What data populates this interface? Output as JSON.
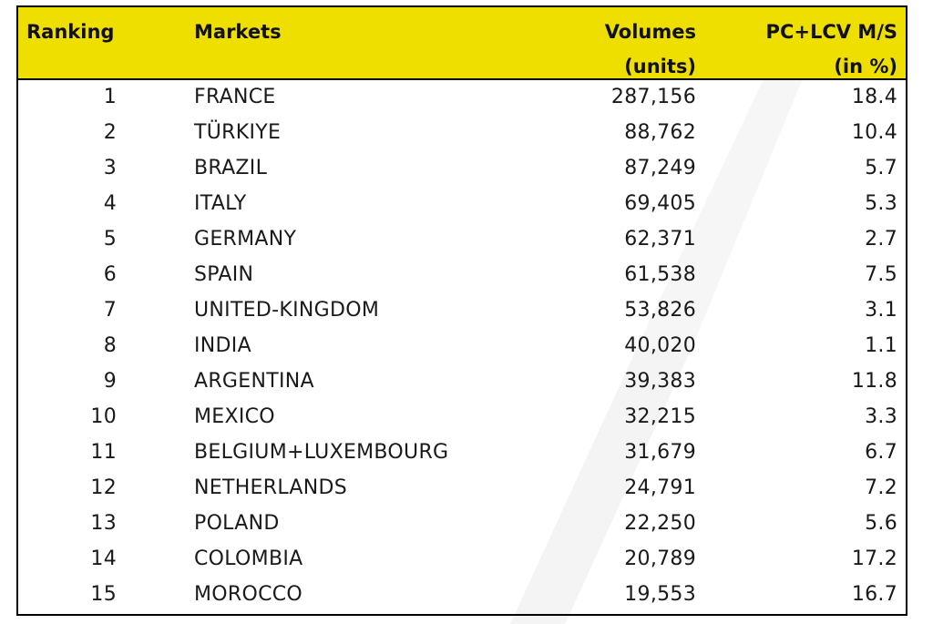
{
  "header": {
    "ranking": "Ranking",
    "markets": "Markets",
    "volumes_line1": "Volumes",
    "volumes_line2": "(units)",
    "share_line1": "PC+LCV M/S",
    "share_line2": "(in %)"
  },
  "colors": {
    "header_bg": "#efdf00",
    "border": "#000000"
  },
  "rows": [
    {
      "rank": "1",
      "market": "FRANCE",
      "volume": "287,156",
      "share": "18.4"
    },
    {
      "rank": "2",
      "market": "TÜRKIYE",
      "volume": "88,762",
      "share": "10.4"
    },
    {
      "rank": "3",
      "market": "BRAZIL",
      "volume": "87,249",
      "share": "5.7"
    },
    {
      "rank": "4",
      "market": "ITALY",
      "volume": "69,405",
      "share": "5.3"
    },
    {
      "rank": "5",
      "market": "GERMANY",
      "volume": "62,371",
      "share": "2.7"
    },
    {
      "rank": "6",
      "market": "SPAIN",
      "volume": "61,538",
      "share": "7.5"
    },
    {
      "rank": "7",
      "market": "UNITED-KINGDOM",
      "volume": "53,826",
      "share": "3.1"
    },
    {
      "rank": "8",
      "market": "INDIA",
      "volume": "40,020",
      "share": "1.1"
    },
    {
      "rank": "9",
      "market": "ARGENTINA",
      "volume": "39,383",
      "share": "11.8"
    },
    {
      "rank": "10",
      "market": "MEXICO",
      "volume": "32,215",
      "share": "3.3"
    },
    {
      "rank": "11",
      "market": "BELGIUM+LUXEMBOURG",
      "volume": "31,679",
      "share": "6.7"
    },
    {
      "rank": "12",
      "market": "NETHERLANDS",
      "volume": "24,791",
      "share": "7.2"
    },
    {
      "rank": "13",
      "market": "POLAND",
      "volume": "22,250",
      "share": "5.6"
    },
    {
      "rank": "14",
      "market": "COLOMBIA",
      "volume": "20,789",
      "share": "17.2"
    },
    {
      "rank": "15",
      "market": "MOROCCO",
      "volume": "19,553",
      "share": "16.7"
    }
  ]
}
